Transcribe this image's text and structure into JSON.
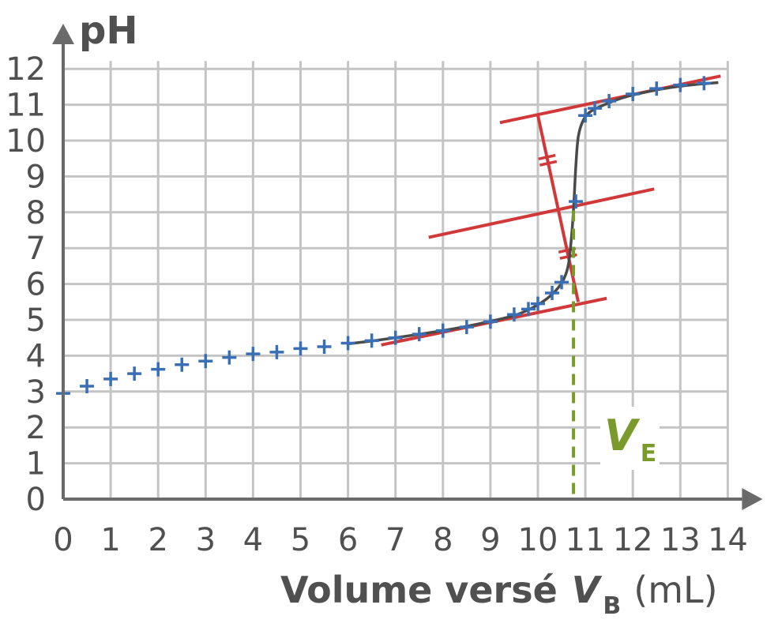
{
  "chart_data": {
    "type": "scatter",
    "title": "",
    "ylabel": "pH",
    "xlabel": {
      "main": "Volume versé",
      "symbol": "V",
      "subscript": "B",
      "unit": "(mL)"
    },
    "xlim": [
      0,
      14
    ],
    "ylim": [
      0,
      12
    ],
    "x_ticks": [
      "0",
      "1",
      "2",
      "3",
      "4",
      "5",
      "6",
      "7",
      "8",
      "9",
      "10",
      "11",
      "12",
      "13",
      "14"
    ],
    "y_ticks": [
      "0",
      "1",
      "2",
      "3",
      "4",
      "5",
      "6",
      "7",
      "8",
      "9",
      "10",
      "11",
      "12"
    ],
    "grid": true,
    "series": [
      {
        "marker": "plus",
        "color": "#3a6fb5",
        "points": [
          [
            0,
            2.95
          ],
          [
            0.5,
            3.15
          ],
          [
            1,
            3.35
          ],
          [
            1.5,
            3.5
          ],
          [
            2,
            3.62
          ],
          [
            2.5,
            3.75
          ],
          [
            3,
            3.85
          ],
          [
            3.5,
            3.95
          ],
          [
            4,
            4.05
          ],
          [
            4.5,
            4.1
          ],
          [
            5,
            4.2
          ],
          [
            5.5,
            4.25
          ],
          [
            6,
            4.35
          ],
          [
            6.5,
            4.42
          ],
          [
            7,
            4.5
          ],
          [
            7.5,
            4.6
          ],
          [
            8,
            4.7
          ],
          [
            8.5,
            4.8
          ],
          [
            9,
            4.95
          ],
          [
            9.5,
            5.15
          ],
          [
            9.8,
            5.3
          ],
          [
            10,
            5.45
          ],
          [
            10.3,
            5.75
          ],
          [
            10.5,
            6.05
          ],
          [
            10.8,
            8.3
          ],
          [
            11,
            10.7
          ],
          [
            11.2,
            10.9
          ],
          [
            11.5,
            11.1
          ],
          [
            12,
            11.3
          ],
          [
            12.5,
            11.45
          ],
          [
            13,
            11.55
          ],
          [
            13.5,
            11.6
          ]
        ]
      },
      {
        "marker": "none",
        "color": "#4a4a4a",
        "curve": [
          [
            6,
            4.33
          ],
          [
            6.5,
            4.41
          ],
          [
            7,
            4.5
          ],
          [
            7.5,
            4.6
          ],
          [
            8,
            4.7
          ],
          [
            8.5,
            4.82
          ],
          [
            9,
            4.96
          ],
          [
            9.5,
            5.12
          ],
          [
            9.8,
            5.28
          ],
          [
            10,
            5.42
          ],
          [
            10.2,
            5.6
          ],
          [
            10.4,
            5.85
          ],
          [
            10.55,
            6.15
          ],
          [
            10.65,
            6.6
          ],
          [
            10.72,
            7.5
          ],
          [
            10.76,
            8.3
          ],
          [
            10.8,
            9.3
          ],
          [
            10.85,
            10.1
          ],
          [
            10.95,
            10.55
          ],
          [
            11.1,
            10.8
          ],
          [
            11.4,
            11.0
          ],
          [
            11.8,
            11.2
          ],
          [
            12.3,
            11.36
          ],
          [
            12.8,
            11.48
          ],
          [
            13.3,
            11.56
          ],
          [
            13.8,
            11.62
          ]
        ]
      }
    ],
    "tangent_method": {
      "color": "#d0383a",
      "lines": [
        {
          "from": [
            6.7,
            4.3
          ],
          "to": [
            11.45,
            5.6
          ]
        },
        {
          "from": [
            9.2,
            10.5
          ],
          "to": [
            13.85,
            11.8
          ]
        },
        {
          "from": [
            7.7,
            7.3
          ],
          "to": [
            12.45,
            8.65
          ]
        }
      ],
      "perpendicular": {
        "from": [
          10.0,
          10.7
        ],
        "to": [
          10.85,
          5.5
        ]
      },
      "equivalence_point": [
        10.74,
        8.05
      ]
    },
    "equivalence": {
      "symbol": "V",
      "subscript": "E",
      "x": 10.75,
      "color": "#7a9a2c"
    }
  }
}
